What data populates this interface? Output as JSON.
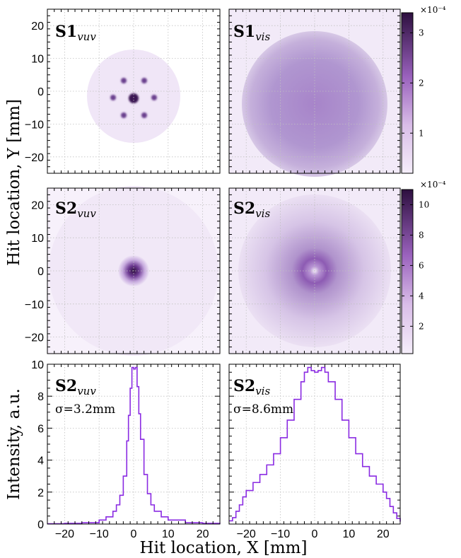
{
  "figure": {
    "y_axis_label_top": "Hit location, Y [mm]",
    "y_axis_label_bottom": "Intensity, a.u.",
    "x_axis_label": "Hit location, X [mm]"
  },
  "chart_data": [
    {
      "type": "heatmap",
      "panel": "S1_vuv",
      "label_main": "S1",
      "label_sub": "vuv",
      "xlim": [
        -25,
        25
      ],
      "ylim": [
        -25,
        25
      ],
      "yticks": [
        20,
        10,
        0,
        -10,
        -20
      ],
      "grid": true,
      "pattern": "seven spots: center (0,0) and six around at radius ~7 mm, on sparse disc radius ~15 mm",
      "colorbar": "S1"
    },
    {
      "type": "heatmap",
      "panel": "S1_vis",
      "label_main": "S1",
      "label_sub": "vis",
      "xlim": [
        -25,
        25
      ],
      "ylim": [
        -25,
        25
      ],
      "grid": true,
      "pattern": "uniform disc radius ~22 mm",
      "colorbar": "S1"
    },
    {
      "type": "heatmap",
      "panel": "S2_vuv",
      "label_main": "S2",
      "label_sub": "vuv",
      "xlim": [
        -25,
        25
      ],
      "ylim": [
        -25,
        25
      ],
      "yticks": [
        20,
        10,
        0,
        -10,
        -20
      ],
      "grid": true,
      "pattern": "narrow central spot",
      "colorbar": "S2"
    },
    {
      "type": "heatmap",
      "panel": "S2_vis",
      "label_main": "S2",
      "label_sub": "vis",
      "xlim": [
        -25,
        25
      ],
      "ylim": [
        -25,
        25
      ],
      "grid": true,
      "pattern": "broad disc with ring near center",
      "colorbar": "S2"
    },
    {
      "type": "line",
      "panel": "S2_vuv_profile",
      "label_main": "S2",
      "label_sub": "vuv",
      "sigma_label": "σ=3.2mm",
      "xlim": [
        -25,
        25
      ],
      "ylim": [
        0,
        10
      ],
      "xticks": [
        -20,
        -10,
        0,
        10,
        20
      ],
      "yticks": [
        0,
        2,
        4,
        6,
        8,
        10
      ],
      "grid": true,
      "color": "#8a2be2",
      "x": [
        -25,
        -20,
        -15,
        -10,
        -8,
        -6,
        -5,
        -4,
        -3,
        -2,
        -1.5,
        -1,
        -0.5,
        0,
        0.5,
        1,
        1.5,
        2,
        3,
        4,
        5,
        6,
        8,
        10,
        15,
        20,
        25
      ],
      "y": [
        0.02,
        0.04,
        0.08,
        0.25,
        0.45,
        0.8,
        1.2,
        1.8,
        3.0,
        5.2,
        6.8,
        8.5,
        9.8,
        9.7,
        9.8,
        8.6,
        6.9,
        5.3,
        3.1,
        1.9,
        1.2,
        0.8,
        0.45,
        0.25,
        0.08,
        0.04,
        0.02
      ]
    },
    {
      "type": "line",
      "panel": "S2_vis_profile",
      "label_main": "S2",
      "label_sub": "vis",
      "sigma_label": "σ=8.6mm",
      "xlim": [
        -25,
        25
      ],
      "ylim": [
        0,
        10
      ],
      "xticks": [
        -20,
        -10,
        0,
        10,
        20
      ],
      "grid": true,
      "color": "#8a2be2",
      "x": [
        -25,
        -24,
        -23,
        -22,
        -21,
        -20,
        -18,
        -16,
        -14,
        -12,
        -10,
        -8,
        -6,
        -4,
        -3,
        -2,
        -1,
        0,
        1,
        2,
        3,
        4,
        6,
        8,
        10,
        12,
        14,
        16,
        18,
        20,
        21,
        22,
        23,
        24,
        25
      ],
      "y": [
        0.2,
        0.4,
        0.8,
        1.2,
        1.7,
        2.1,
        2.6,
        3.1,
        3.7,
        4.4,
        5.4,
        6.5,
        7.8,
        8.9,
        9.5,
        9.8,
        9.6,
        9.5,
        9.6,
        9.8,
        9.5,
        8.9,
        7.8,
        6.5,
        5.4,
        4.4,
        3.6,
        3.0,
        2.5,
        2.0,
        1.6,
        1.1,
        0.7,
        0.35,
        0.15
      ]
    }
  ],
  "colorbars": {
    "S1": {
      "exponent_label": "×10⁻⁴",
      "ticks": [
        "3",
        "2",
        "1"
      ],
      "tick_values": [
        3,
        2,
        1
      ],
      "range": [
        0.2,
        3.4
      ]
    },
    "S2": {
      "exponent_label": "×10⁻⁴",
      "ticks": [
        "10",
        "8",
        "6",
        "4",
        "2"
      ],
      "tick_values": [
        10,
        8,
        6,
        4,
        2
      ],
      "range": [
        0.2,
        11
      ]
    }
  },
  "colors": {
    "cmap_low": "#f1e6f7",
    "cmap_high": "#2d0f3f",
    "line": "#8a2be2",
    "grid": "#c0c0c0"
  }
}
